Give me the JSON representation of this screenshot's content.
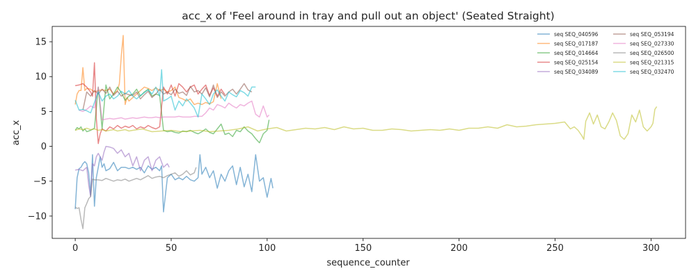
{
  "chart_data": {
    "type": "line",
    "title": "acc_x of 'Feel around in tray and pull out an object' (Seated Straight)",
    "xlabel": "sequence_counter",
    "ylabel": "acc_x",
    "xlim": [
      -12,
      318
    ],
    "ylim": [
      -13.2,
      17.2
    ],
    "xticks": [
      0,
      50,
      100,
      150,
      200,
      250,
      300
    ],
    "yticks": [
      -10,
      -5,
      0,
      5,
      10,
      15
    ],
    "grid": false,
    "legend": {
      "placement": "top-right",
      "columns": 2
    },
    "series": [
      {
        "name": "seq SEQ_040596",
        "color": "#1f77b4",
        "x": [
          0,
          1,
          2,
          3,
          4,
          5,
          6,
          7,
          8,
          9,
          10,
          11,
          12,
          13,
          14,
          15,
          16,
          18,
          20,
          22,
          24,
          26,
          28,
          30,
          32,
          34,
          36,
          38,
          40,
          42,
          44,
          45,
          46,
          48,
          50,
          52,
          54,
          56,
          58,
          60,
          62,
          64,
          65,
          66,
          68,
          70,
          72,
          74,
          76,
          78,
          80,
          82,
          84,
          86,
          88,
          90,
          92,
          94,
          96,
          98,
          100,
          102,
          103
        ],
        "y": [
          -9,
          -4.5,
          -3.2,
          -3,
          -2.5,
          -2.2,
          -2.5,
          -3.8,
          -7,
          -1.2,
          -8.6,
          -4.5,
          -3,
          -1.5,
          -3,
          -2.5,
          -3.5,
          -3.2,
          -2.3,
          -3.5,
          -3,
          -3,
          -3.2,
          -3,
          -3.3,
          -3,
          -3.8,
          -2.8,
          -3.3,
          -3,
          -3.5,
          -2.8,
          -9.4,
          -4.5,
          -4,
          -4.8,
          -4.5,
          -4.8,
          -4.3,
          -4.8,
          -5,
          -4.5,
          -1.2,
          -4,
          -3,
          -4.5,
          -3.5,
          -6,
          -4,
          -5,
          -3.5,
          -2.8,
          -5.5,
          -3,
          -5.8,
          -4,
          -6.5,
          -1.2,
          -5,
          -4.5,
          -7.3,
          -4.6,
          -6
        ]
      },
      {
        "name": "seq SEQ_017187",
        "color": "#ff7f0e",
        "x": [
          0,
          1,
          2,
          3,
          4,
          5,
          6,
          8,
          10,
          12,
          14,
          16,
          18,
          20,
          22,
          23,
          24,
          25,
          26,
          27,
          28,
          30,
          32,
          34,
          36,
          38,
          40,
          42,
          44,
          46,
          48,
          50,
          52,
          54,
          56,
          58,
          60,
          62,
          64,
          66,
          68,
          70,
          72,
          74,
          76
        ],
        "y": [
          6,
          7.5,
          8,
          8,
          11.3,
          8,
          8.3,
          8.2,
          7.8,
          8,
          8.1,
          8,
          8.2,
          7.5,
          8,
          9,
          13,
          15.9,
          6,
          7,
          6.5,
          7,
          7.5,
          8,
          8.5,
          8.3,
          8,
          8.4,
          8,
          8.2,
          7.8,
          8,
          8.5,
          7,
          6.8,
          6.5,
          6.8,
          6,
          6.2,
          6,
          6.3,
          6.1,
          6.4,
          9,
          6.8
        ]
      },
      {
        "name": "seq SEQ_014664",
        "color": "#2ca02c",
        "x": [
          0,
          1,
          2,
          3,
          4,
          5,
          6,
          8,
          10,
          12,
          14,
          16,
          18,
          20,
          22,
          24,
          26,
          28,
          30,
          32,
          34,
          36,
          38,
          40,
          42,
          44,
          46,
          48,
          50,
          52,
          54,
          56,
          58,
          60,
          62,
          64,
          66,
          68,
          70,
          72,
          74,
          76,
          78,
          80,
          82,
          84,
          86,
          88,
          90,
          92,
          94,
          96,
          98,
          100,
          101
        ],
        "y": [
          2.3,
          2.7,
          2.5,
          2.8,
          2.2,
          2.5,
          2.1,
          2.3,
          2.6,
          8.5,
          2.5,
          8.8,
          6.8,
          7.5,
          8.5,
          7.7,
          6.6,
          7.2,
          7.5,
          8.2,
          7.2,
          7.8,
          8.2,
          7.2,
          7.5,
          7.3,
          2.3,
          2.1,
          2.2,
          2,
          1.9,
          2.2,
          2.1,
          2.3,
          2,
          1.8,
          2.1,
          2.5,
          2,
          1.8,
          2.5,
          3.2,
          1.7,
          1.9,
          1.4,
          2.3,
          2.1,
          2.8,
          2.2,
          1.8,
          1.1,
          0.5,
          1.8,
          2.3,
          3.8
        ]
      },
      {
        "name": "seq SEQ_025154",
        "color": "#d62728",
        "x": [
          0,
          2,
          4,
          6,
          8,
          9,
          10,
          11,
          12,
          13,
          14,
          16,
          18,
          20,
          22,
          24,
          26,
          28,
          30,
          32,
          34,
          36,
          38,
          40,
          42,
          44,
          46,
          48,
          50,
          52,
          54,
          56,
          58,
          60,
          62,
          64,
          66,
          68,
          70,
          72,
          74,
          76,
          78
        ],
        "y": [
          8.7,
          8.8,
          9,
          8.5,
          7.8,
          7.2,
          12,
          4,
          0.4,
          1.8,
          2.5,
          2.2,
          2.8,
          2.5,
          3,
          2.6,
          2.9,
          2.7,
          3,
          2.5,
          2.8,
          2.6,
          3,
          2.7,
          2.5,
          2.8,
          8.5,
          7.5,
          8.8,
          7.2,
          9,
          8.5,
          7.8,
          8.5,
          8.8,
          7.5,
          8.2,
          8.8,
          7.3,
          8.4,
          7.2,
          8.2,
          7.4
        ]
      },
      {
        "name": "seq SEQ_034089",
        "color": "#9467bd",
        "x": [
          0,
          2,
          4,
          6,
          7,
          8,
          9,
          10,
          11,
          12,
          13,
          14,
          15,
          16,
          18,
          20,
          22,
          24,
          26,
          28,
          30,
          32,
          34,
          36,
          38,
          40,
          42,
          44,
          46,
          48,
          49
        ],
        "y": [
          -3.4,
          -3.3,
          -3.5,
          -3,
          -5.5,
          -7.2,
          -2.5,
          -2.8,
          -1.5,
          -1,
          -1.5,
          -2,
          -0.8,
          0,
          -0.1,
          -0.3,
          -1,
          -0.5,
          -1.5,
          -1,
          -2.8,
          -1.5,
          -3.5,
          -2,
          -1.5,
          -3.5,
          -2,
          -1.5,
          -3,
          -2.5,
          -3
        ]
      },
      {
        "name": "seq SEQ_053194",
        "color": "#8c564b",
        "x": [
          4,
          6,
          8,
          10,
          12,
          14,
          16,
          18,
          20,
          22,
          24,
          26,
          28,
          30,
          32,
          34,
          36,
          38,
          40,
          42,
          44,
          46,
          48,
          50,
          52,
          54,
          56,
          58,
          60,
          62,
          64,
          66,
          68,
          70,
          72,
          74,
          76,
          78,
          80,
          82,
          84,
          86,
          88,
          90,
          92
        ],
        "y": [
          5.2,
          7.8,
          7.2,
          8,
          7.5,
          8.2,
          7.6,
          8.5,
          7.3,
          7.9,
          7.2,
          7.6,
          7.4,
          7.3,
          7.8,
          6.8,
          7.4,
          7.9,
          7,
          7.5,
          8.2,
          7.5,
          7.8,
          7.4,
          8.2,
          7.6,
          7.8,
          7.3,
          8.6,
          7.8,
          8,
          7.5,
          8.4,
          7.1,
          8.8,
          7,
          7.8,
          7.2,
          7.8,
          8.2,
          7.5,
          8.2,
          9,
          8.1,
          7.8
        ]
      },
      {
        "name": "seq SEQ_027330",
        "color": "#e377c2",
        "x": [
          2,
          4,
          6,
          8,
          10,
          12,
          14,
          16,
          18,
          20,
          22,
          24,
          26,
          28,
          30,
          32,
          34,
          36,
          38,
          40,
          42,
          44,
          46,
          48,
          50,
          52,
          54,
          56,
          58,
          60,
          62,
          64,
          66,
          68,
          70,
          72,
          74,
          76,
          78,
          80,
          82,
          84,
          86,
          88,
          90,
          92,
          94,
          96,
          98,
          100,
          101
        ],
        "y": [
          5.2,
          5,
          5.3,
          5.8,
          5.5,
          8.5,
          3.8,
          3.9,
          4,
          3.9,
          4,
          4.1,
          3.9,
          4,
          4.1,
          4,
          4.1,
          4.2,
          4.1,
          4.1,
          4.2,
          4.1,
          4.2,
          4.2,
          4.2,
          4.2,
          4.3,
          4.2,
          4.2,
          4.2,
          4.3,
          4.3,
          4.3,
          4.8,
          5.5,
          5.2,
          6,
          5.8,
          5.5,
          6.2,
          5.8,
          5.5,
          6,
          5.8,
          6.2,
          6.5,
          4.6,
          4.2,
          5.8,
          4.2,
          4.5
        ]
      },
      {
        "name": "seq SEQ_026500",
        "color": "#7f7f7f",
        "x": [
          0,
          1,
          2,
          3,
          4,
          5,
          6,
          7,
          8,
          9,
          10,
          12,
          14,
          16,
          18,
          20,
          22,
          24,
          26,
          28,
          30,
          32,
          34,
          36,
          38,
          40,
          42,
          44,
          46,
          48,
          50,
          52,
          54,
          56,
          58,
          60,
          62,
          63
        ],
        "y": [
          -8.7,
          -8.9,
          -8.8,
          -10.5,
          -11.8,
          -8.8,
          -8.2,
          -7.5,
          -7.2,
          -4.7,
          -4.8,
          -4.8,
          -4.9,
          -4.6,
          -4.8,
          -5,
          -4.8,
          -4.9,
          -4.7,
          -5,
          -4.8,
          -4.6,
          -4.8,
          -4.5,
          -4.2,
          -4.6,
          -4.4,
          -4.3,
          -4.5,
          -4.2,
          -4,
          -3.8,
          -4.3,
          -4,
          -3.5,
          -4.1,
          -3.8,
          -3
        ]
      },
      {
        "name": "seq SEQ_021315",
        "color": "#bcbd22",
        "x": [
          0,
          2,
          4,
          6,
          8,
          10,
          12,
          14,
          16,
          18,
          20,
          22,
          24,
          26,
          28,
          30,
          35,
          40,
          45,
          50,
          55,
          60,
          65,
          70,
          75,
          80,
          85,
          90,
          95,
          100,
          105,
          110,
          115,
          120,
          125,
          130,
          135,
          140,
          145,
          150,
          155,
          160,
          165,
          170,
          175,
          180,
          185,
          190,
          195,
          200,
          205,
          210,
          215,
          220,
          225,
          230,
          235,
          240,
          245,
          250,
          255,
          258,
          260,
          262,
          264,
          265,
          266,
          268,
          270,
          272,
          274,
          276,
          278,
          280,
          282,
          284,
          286,
          288,
          290,
          292,
          294,
          296,
          298,
          300,
          301,
          302,
          303
        ],
        "y": [
          2.3,
          2.5,
          2.4,
          2.6,
          2.4,
          2.5,
          2.3,
          2.4,
          2.2,
          2.3,
          2.4,
          2.2,
          2.3,
          2.4,
          2.2,
          2.3,
          2.5,
          2.1,
          2.2,
          2.3,
          2.1,
          2.2,
          2.3,
          2.1,
          2.2,
          2.3,
          2.5,
          2.8,
          2.2,
          2.5,
          2.7,
          2.2,
          2.4,
          2.6,
          2.5,
          2.7,
          2.4,
          2.8,
          2.5,
          2.6,
          2.3,
          2.3,
          2.5,
          2.4,
          2.2,
          2.3,
          2.4,
          2.3,
          2.5,
          2.3,
          2.6,
          2.6,
          2.8,
          2.6,
          3.1,
          2.8,
          2.9,
          3.1,
          3.2,
          3.3,
          3.5,
          2.5,
          2.8,
          2.3,
          1.5,
          1,
          3.6,
          4.8,
          3.2,
          4.5,
          2.8,
          2.5,
          3.5,
          4.8,
          3.7,
          1.5,
          1,
          1.8,
          4.5,
          3.5,
          5.2,
          2.8,
          2.2,
          2.8,
          3.3,
          5.3,
          5.7
        ]
      },
      {
        "name": "seq SEQ_032470",
        "color": "#17becf",
        "x": [
          0,
          2,
          4,
          6,
          8,
          10,
          12,
          14,
          16,
          18,
          20,
          22,
          24,
          26,
          28,
          30,
          32,
          34,
          36,
          38,
          40,
          42,
          44,
          45,
          46,
          48,
          50,
          52,
          54,
          56,
          58,
          60,
          62,
          64,
          66,
          68,
          70,
          72,
          74,
          76,
          78,
          80,
          82,
          84,
          86,
          88,
          90,
          92,
          94
        ],
        "y": [
          6.6,
          5.2,
          5.3,
          5.1,
          4.8,
          6.3,
          7.8,
          6.5,
          7.2,
          7.5,
          6.8,
          7.2,
          7.9,
          7.5,
          8,
          7.2,
          6.8,
          7.3,
          7.7,
          8.1,
          7.5,
          8.5,
          7.2,
          11,
          6.5,
          6.8,
          7.2,
          5.2,
          6.5,
          5.8,
          6.8,
          6.2,
          5.5,
          4.2,
          7.5,
          6.8,
          6,
          7.5,
          8.1,
          7.2,
          6.5,
          7.8,
          7.4,
          7.1,
          8,
          7.7,
          7.2,
          8.5,
          8.5
        ]
      }
    ]
  }
}
